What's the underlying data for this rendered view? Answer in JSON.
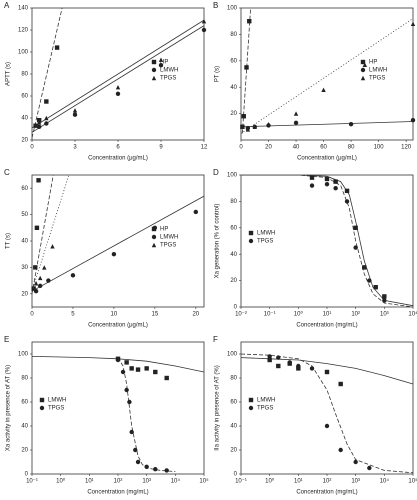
{
  "chart_data": [
    {
      "type": "scatter",
      "panel": "A",
      "x_label": "Concentration (μg/mL)",
      "y_label": "APTT (s)",
      "xlim": [
        0,
        12
      ],
      "xticks": [
        0,
        3,
        6,
        9,
        12
      ],
      "ylim": [
        20,
        140
      ],
      "yticks": [
        20,
        40,
        60,
        80,
        100,
        120,
        140
      ],
      "legend": "center-right",
      "series": [
        {
          "name": "HP",
          "color": "#222",
          "marker": "square",
          "linestyle": "dashed",
          "x": [
            0.25,
            0.5,
            1,
            1.75
          ],
          "values": [
            33,
            38,
            55,
            104
          ],
          "fit": {
            "x": [
              0,
              2.1
            ],
            "y": [
              22,
              140
            ]
          }
        },
        {
          "name": "LMWH",
          "color": "#222",
          "marker": "circle",
          "linestyle": "solid",
          "x": [
            0.5,
            1,
            3,
            6,
            9,
            12
          ],
          "values": [
            32,
            35,
            43,
            62,
            88,
            120
          ],
          "fit": {
            "x": [
              0,
              12
            ],
            "y": [
              27,
              124
            ]
          }
        },
        {
          "name": "TPGS",
          "color": "#222",
          "marker": "triangle",
          "linestyle": "solid",
          "x": [
            0.5,
            1,
            3,
            6,
            9,
            12
          ],
          "values": [
            36,
            40,
            47,
            68,
            93,
            128
          ],
          "fit": {
            "x": [
              0,
              12
            ],
            "y": [
              31,
              129
            ]
          }
        }
      ]
    },
    {
      "type": "scatter",
      "panel": "B",
      "x_label": "Concentration (μg/mL)",
      "y_label": "PT (s)",
      "xlim": [
        0,
        125
      ],
      "xticks": [
        0,
        20,
        40,
        60,
        80,
        100,
        120
      ],
      "ylim": [
        0,
        100
      ],
      "yticks": [
        20,
        40,
        60,
        80,
        100
      ],
      "legend": "center-right",
      "series": [
        {
          "name": "HP",
          "color": "#222",
          "marker": "square",
          "linestyle": "dashed",
          "x": [
            1,
            2,
            4,
            6
          ],
          "values": [
            10,
            18,
            55,
            90
          ],
          "fit": {
            "x": [
              1,
              7
            ],
            "y": [
              5,
              100
            ]
          }
        },
        {
          "name": "LMWH",
          "color": "#222",
          "marker": "circle",
          "linestyle": "solid",
          "x": [
            5,
            10,
            20,
            40,
            80,
            125
          ],
          "values": [
            9,
            10,
            11,
            13,
            12,
            15
          ],
          "fit": {
            "x": [
              0,
              125
            ],
            "y": [
              10,
              14
            ]
          }
        },
        {
          "name": "TPGS",
          "color": "#222",
          "marker": "triangle",
          "linestyle": "dotted",
          "x": [
            5,
            10,
            20,
            40,
            60,
            90,
            125
          ],
          "values": [
            8,
            10,
            12,
            20,
            38,
            57,
            88
          ],
          "fit": {
            "x": [
              0,
              125
            ],
            "y": [
              5,
              92
            ]
          }
        }
      ]
    },
    {
      "type": "scatter",
      "panel": "C",
      "x_label": "Concentration (μg/mL)",
      "y_label": "TT (s)",
      "xlim": [
        0,
        21
      ],
      "xticks": [
        0,
        5,
        10,
        15,
        20
      ],
      "ylim": [
        15,
        65
      ],
      "yticks": [
        20,
        30,
        40,
        50,
        60
      ],
      "legend": "center-right",
      "series": [
        {
          "name": "HP",
          "color": "#222",
          "marker": "square",
          "linestyle": "dashed",
          "x": [
            0.2,
            0.4,
            0.6,
            0.8
          ],
          "values": [
            22,
            30,
            45,
            63
          ],
          "fit": {
            "x": [
              0,
              2.6
            ],
            "y": [
              20,
              65
            ]
          }
        },
        {
          "name": "LMWH",
          "color": "#222",
          "marker": "circle",
          "linestyle": "solid",
          "x": [
            0.5,
            1,
            2,
            5,
            10,
            15,
            20
          ],
          "values": [
            21,
            23,
            25,
            27,
            35,
            45,
            51
          ],
          "fit": {
            "x": [
              0,
              21
            ],
            "y": [
              21,
              57
            ]
          }
        },
        {
          "name": "TPGS",
          "color": "#222",
          "marker": "triangle",
          "linestyle": "dotted",
          "x": [
            0.5,
            1,
            1.5,
            2.5
          ],
          "values": [
            24,
            26,
            30,
            38
          ],
          "fit": {
            "x": [
              0,
              4.5
            ],
            "y": [
              21,
              65
            ]
          }
        }
      ]
    },
    {
      "type": "scatter",
      "panel": "D",
      "x_label": "Concentration (mg/mL)",
      "y_label": "Xa generation (% of control)",
      "xlog": true,
      "xlim": [
        0.01,
        10000
      ],
      "xticks": [
        {
          "value": 0.01,
          "label": "10⁻²"
        },
        {
          "value": 0.1,
          "label": "10⁻¹"
        },
        {
          "value": 1,
          "label": "10⁰"
        },
        {
          "value": 10,
          "label": "10¹"
        },
        {
          "value": 100,
          "label": "10²"
        },
        {
          "value": 1000,
          "label": "10³"
        },
        {
          "value": 10000,
          "label": "10⁴"
        }
      ],
      "ylim": [
        0,
        100
      ],
      "yticks": [
        0,
        20,
        40,
        60,
        80,
        100
      ],
      "legend": "center-left",
      "series": [
        {
          "name": "LMWH",
          "color": "#222",
          "marker": "square",
          "linestyle": "solid",
          "x": [
            3,
            10,
            20,
            50,
            100,
            200,
            500,
            1000
          ],
          "values": [
            98,
            97,
            95,
            88,
            60,
            30,
            15,
            8
          ],
          "fit": {
            "x": [
              0.01,
              1,
              10,
              30,
              60,
              100,
              200,
              400,
              1000,
              10000
            ],
            "y": [
              100,
              100,
              99,
              95,
              85,
              65,
              35,
              15,
              5,
              1
            ]
          }
        },
        {
          "name": "TPGS",
          "color": "#222",
          "marker": "circle",
          "linestyle": "dashed",
          "x": [
            3,
            10,
            20,
            50,
            100,
            300,
            1000
          ],
          "values": [
            92,
            93,
            90,
            80,
            45,
            20,
            5
          ],
          "fit": {
            "x": [
              0.01,
              1,
              10,
              30,
              60,
              100,
              200,
              400,
              1000,
              10000
            ],
            "y": [
              100,
              100,
              98,
              92,
              75,
              50,
              25,
              10,
              3,
              0
            ]
          }
        }
      ]
    },
    {
      "type": "scatter",
      "panel": "E",
      "x_label": "Concentration (mg/mL)",
      "y_label": "Xa activity in presence of AT (%)",
      "xlog": true,
      "xlim": [
        0.1,
        100000
      ],
      "xticks": [
        {
          "value": 0.1,
          "label": "10⁻¹"
        },
        {
          "value": 1,
          "label": "10⁰"
        },
        {
          "value": 10,
          "label": "10¹"
        },
        {
          "value": 100,
          "label": "10²"
        },
        {
          "value": 1000,
          "label": "10³"
        },
        {
          "value": 10000,
          "label": "10⁴"
        },
        {
          "value": 100000,
          "label": "10⁵"
        }
      ],
      "ylim": [
        0,
        110
      ],
      "yticks": [
        0,
        20,
        40,
        60,
        80,
        100
      ],
      "legend": "center-left",
      "series": [
        {
          "name": "LMWH",
          "color": "#222",
          "marker": "square",
          "linestyle": "solid",
          "x": [
            100,
            200,
            300,
            500,
            1000,
            2000,
            5000
          ],
          "values": [
            96,
            93,
            88,
            87,
            88,
            85,
            80
          ],
          "fit": {
            "x": [
              0.1,
              10,
              100,
              1000,
              10000,
              100000
            ],
            "y": [
              98,
              97,
              96,
              94,
              90,
              85
            ]
          }
        },
        {
          "name": "TPGS",
          "color": "#222",
          "marker": "circle",
          "linestyle": "dashed",
          "x": [
            100,
            150,
            200,
            250,
            300,
            400,
            500,
            1000,
            2000,
            5000
          ],
          "values": [
            95,
            85,
            70,
            60,
            35,
            20,
            10,
            6,
            4,
            3
          ],
          "fit": {
            "x": [
              100,
              150,
              200,
              300,
              500,
              700,
              1000,
              3000,
              10000
            ],
            "y": [
              97,
              90,
              75,
              40,
              15,
              8,
              5,
              3,
              2
            ]
          }
        }
      ]
    },
    {
      "type": "scatter",
      "panel": "F",
      "x_label": "Concentration (mg/mL)",
      "y_label": "IIa activity in presence of AT (%)",
      "xlog": true,
      "xlim": [
        0.1,
        100000
      ],
      "xticks": [
        {
          "value": 0.1,
          "label": "10⁻¹"
        },
        {
          "value": 1,
          "label": "10⁰"
        },
        {
          "value": 10,
          "label": "10¹"
        },
        {
          "value": 100,
          "label": "10²"
        },
        {
          "value": 1000,
          "label": "10³"
        },
        {
          "value": 10000,
          "label": "10⁴"
        },
        {
          "value": 100000,
          "label": "10⁵"
        }
      ],
      "ylim": [
        0,
        110
      ],
      "yticks": [
        0,
        20,
        40,
        60,
        80,
        100
      ],
      "legend": "center-left",
      "series": [
        {
          "name": "LMWH",
          "color": "#222",
          "marker": "square",
          "linestyle": "solid",
          "x": [
            1,
            2,
            5,
            10,
            100,
            300
          ],
          "values": [
            95,
            90,
            92,
            88,
            85,
            75
          ],
          "fit": {
            "x": [
              0.1,
              1,
              10,
              100,
              1000,
              10000,
              100000
            ],
            "y": [
              97,
              96,
              95,
              92,
              88,
              82,
              75
            ]
          }
        },
        {
          "name": "TPGS",
          "color": "#222",
          "marker": "circle",
          "linestyle": "dashed",
          "x": [
            1,
            2,
            5,
            10,
            30,
            100,
            300,
            1000,
            3000
          ],
          "values": [
            98,
            97,
            93,
            90,
            88,
            40,
            20,
            10,
            5
          ],
          "fit": {
            "x": [
              0.1,
              1,
              10,
              30,
              100,
              200,
              500,
              1000,
              10000,
              100000
            ],
            "y": [
              100,
              99,
              96,
              90,
              70,
              50,
              25,
              12,
              3,
              1
            ]
          }
        }
      ]
    }
  ]
}
